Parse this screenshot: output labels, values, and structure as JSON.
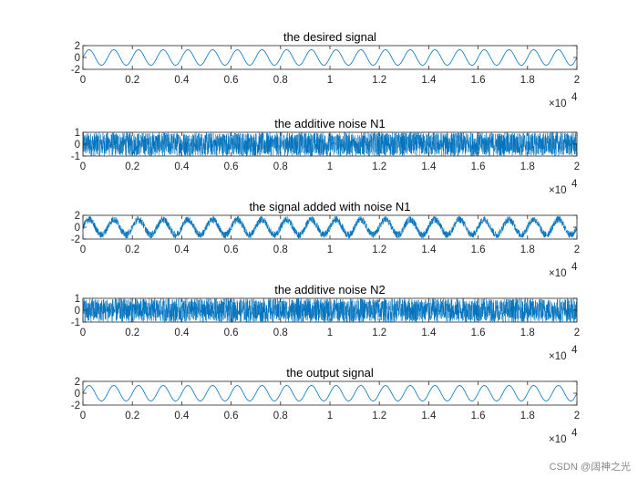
{
  "watermark": "CSDN @阔神之光",
  "colors": {
    "line": "#0072BD",
    "axis": "#262626"
  },
  "chart_data": [
    {
      "type": "line",
      "title": "the desired signal",
      "signal": "sinusoid",
      "amplitude": 1.3,
      "period_samples": 1000,
      "samples": 20000,
      "xlim": [
        0,
        20000
      ],
      "ylim": [
        -2,
        2
      ],
      "yticks": [
        "2",
        "0",
        "-2"
      ],
      "xticks": [
        "0",
        "0.2",
        "0.4",
        "0.6",
        "0.8",
        "1",
        "1.2",
        "1.4",
        "1.6",
        "1.8",
        "2"
      ],
      "x_multiplier": "×10",
      "x_multiplier_exp": "4"
    },
    {
      "type": "line",
      "title": "the additive noise N1",
      "signal": "noise",
      "amplitude": 1.0,
      "samples": 20000,
      "xlim": [
        0,
        20000
      ],
      "ylim": [
        -1,
        1
      ],
      "yticks": [
        "1",
        "0",
        "-1"
      ],
      "xticks": [
        "0",
        "0.2",
        "0.4",
        "0.6",
        "0.8",
        "1",
        "1.2",
        "1.4",
        "1.6",
        "1.8",
        "2"
      ],
      "x_multiplier": "×10",
      "x_multiplier_exp": "4"
    },
    {
      "type": "line",
      "title": "the signal added with noise N1",
      "signal": "sinusoid+noise",
      "amplitude": 1.3,
      "noise_amplitude": 0.6,
      "period_samples": 1000,
      "samples": 20000,
      "xlim": [
        0,
        20000
      ],
      "ylim": [
        -2,
        2
      ],
      "yticks": [
        "2",
        "0",
        "-2"
      ],
      "xticks": [
        "0",
        "0.2",
        "0.4",
        "0.6",
        "0.8",
        "1",
        "1.2",
        "1.4",
        "1.6",
        "1.8",
        "2"
      ],
      "x_multiplier": "×10",
      "x_multiplier_exp": "4"
    },
    {
      "type": "line",
      "title": "the additive noise N2",
      "signal": "noise",
      "amplitude": 1.0,
      "samples": 20000,
      "xlim": [
        0,
        20000
      ],
      "ylim": [
        -1,
        1
      ],
      "yticks": [
        "1",
        "0",
        "-1"
      ],
      "xticks": [
        "0",
        "0.2",
        "0.4",
        "0.6",
        "0.8",
        "1",
        "1.2",
        "1.4",
        "1.6",
        "1.8",
        "2"
      ],
      "x_multiplier": "×10",
      "x_multiplier_exp": "4"
    },
    {
      "type": "line",
      "title": "the output signal",
      "signal": "sinusoid",
      "amplitude": 1.3,
      "period_samples": 1000,
      "samples": 20000,
      "xlim": [
        0,
        20000
      ],
      "ylim": [
        -2,
        2
      ],
      "yticks": [
        "2",
        "0",
        "-2"
      ],
      "xticks": [
        "0",
        "0.2",
        "0.4",
        "0.6",
        "0.8",
        "1",
        "1.2",
        "1.4",
        "1.6",
        "1.8",
        "2"
      ],
      "x_multiplier": "×10",
      "x_multiplier_exp": "4"
    }
  ]
}
